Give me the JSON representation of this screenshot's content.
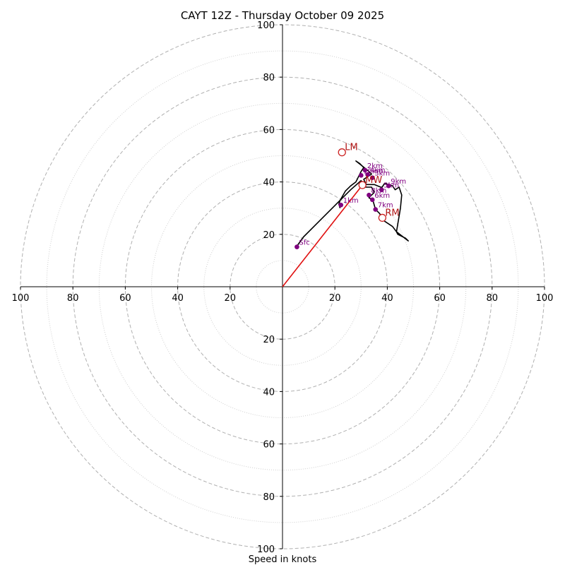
{
  "chart_data": {
    "type": "hodograph",
    "title": "CAYT 12Z - Thursday October 09 2025",
    "xlabel": "Speed in knots",
    "rmax": 100,
    "major_rings": [
      20,
      40,
      60,
      80,
      100
    ],
    "minor_rings": [
      10,
      30,
      50,
      70,
      90
    ],
    "tick_labels": {
      "right": [
        "20",
        "40",
        "60",
        "80",
        "100"
      ],
      "left": [
        "100",
        "80",
        "60",
        "40",
        "20"
      ],
      "up": [
        "20",
        "40",
        "60",
        "80",
        "100"
      ],
      "down": [
        "20",
        "40",
        "60",
        "80",
        "100"
      ]
    },
    "trace": [
      [
        5.5,
        15.5
      ],
      [
        8,
        19
      ],
      [
        12,
        23
      ],
      [
        17,
        28
      ],
      [
        22,
        33
      ],
      [
        26,
        37
      ],
      [
        30,
        40.5
      ],
      [
        31,
        38
      ],
      [
        34,
        38
      ],
      [
        35,
        36
      ],
      [
        33,
        34
      ],
      [
        34.5,
        33
      ],
      [
        35.5,
        29.5
      ],
      [
        37,
        28
      ],
      [
        39,
        25
      ],
      [
        42,
        23
      ],
      [
        43.5,
        21
      ],
      [
        48,
        17.5
      ],
      [
        47,
        18.5
      ],
      [
        44,
        20
      ],
      [
        43.5,
        21
      ],
      [
        45,
        30
      ],
      [
        45.5,
        35
      ],
      [
        44.5,
        38
      ],
      [
        43,
        37
      ],
      [
        42,
        38.5
      ],
      [
        39,
        39.5
      ],
      [
        38,
        38
      ],
      [
        37.5,
        38
      ],
      [
        35,
        39
      ],
      [
        32,
        39
      ],
      [
        31,
        41
      ],
      [
        32.5,
        42
      ],
      [
        34,
        43
      ],
      [
        33,
        44
      ],
      [
        30.5,
        46
      ],
      [
        28,
        48
      ],
      [
        29.5,
        47
      ],
      [
        31,
        45.5
      ],
      [
        30,
        44
      ],
      [
        29,
        42
      ],
      [
        28,
        40
      ],
      [
        26,
        38.5
      ],
      [
        24,
        36.5
      ],
      [
        22,
        33
      ],
      [
        21.5,
        31.5
      ],
      [
        22,
        30
      ]
    ],
    "height_points": [
      {
        "label": "Sfc",
        "u": 5.5,
        "v": 15.2
      },
      {
        "label": "1km",
        "u": 22.3,
        "v": 31.2
      },
      {
        "label": "2km",
        "u": 31.5,
        "v": 44.5
      },
      {
        "label": "3km",
        "u": 34.3,
        "v": 41.6
      },
      {
        "label": "4km",
        "u": 32.5,
        "v": 42.8
      },
      {
        "label": "5km",
        "u": 37.8,
        "v": 37.0
      },
      {
        "label": "6km",
        "u": 34.3,
        "v": 33.2
      },
      {
        "label": "7km",
        "u": 35.5,
        "v": 29.5
      },
      {
        "label": "8km",
        "u": 33.0,
        "v": 35.0
      },
      {
        "label": "9km",
        "u": 40.5,
        "v": 38.5
      },
      {
        "label": "10km",
        "u": 30.0,
        "v": 42.5
      }
    ],
    "storm_motions": [
      {
        "label": "LM",
        "u": 22.7,
        "v": 51.3
      },
      {
        "label": "RM",
        "u": 38.1,
        "v": 26.3
      },
      {
        "label": "MW",
        "u": 30.5,
        "v": 38.8
      }
    ],
    "mean_wind_vector": {
      "u": 30.5,
      "v": 38.8
    }
  }
}
